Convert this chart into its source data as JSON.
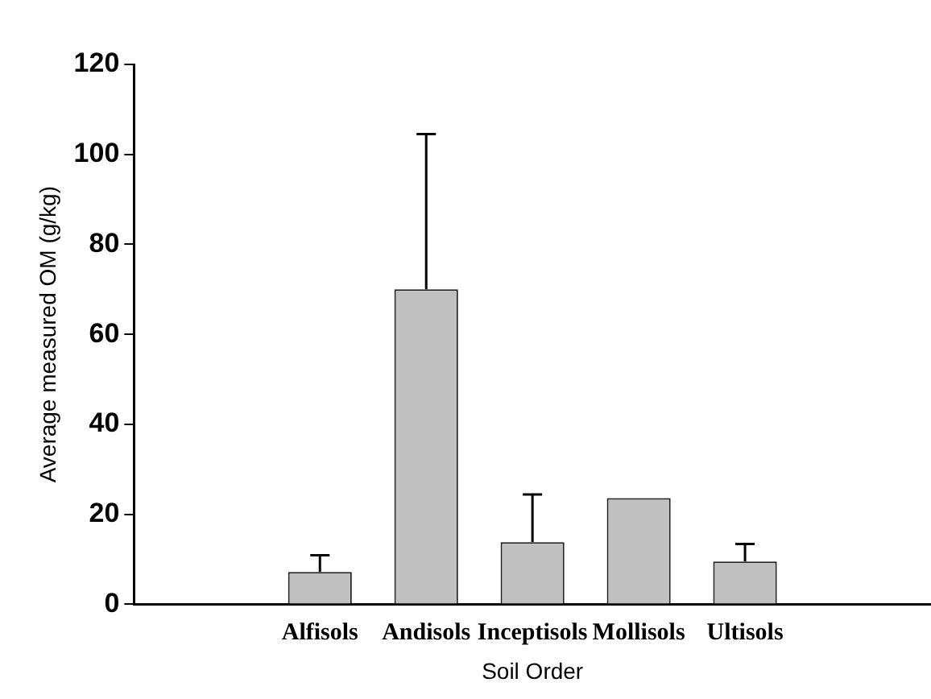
{
  "chart_data": {
    "type": "bar",
    "xlabel": "Soil Order",
    "ylabel": "Average measured OM (g/kg)",
    "categories": [
      "Alfisols",
      "Andisols",
      "Inceptisols",
      "Mollisols",
      "Ultisols"
    ],
    "values": [
      7.2,
      70,
      13.8,
      23.6,
      9.5
    ],
    "errors": [
      [
        7.2,
        10.9
      ],
      [
        70,
        104.5
      ],
      [
        13.8,
        24.4
      ],
      null,
      [
        9.5,
        13.4
      ]
    ],
    "color": "#c0c0c0",
    "ylim": [
      0,
      120
    ],
    "yticks": [
      0,
      20,
      40,
      60,
      80,
      100,
      120
    ],
    "grid": false,
    "legend": false
  }
}
